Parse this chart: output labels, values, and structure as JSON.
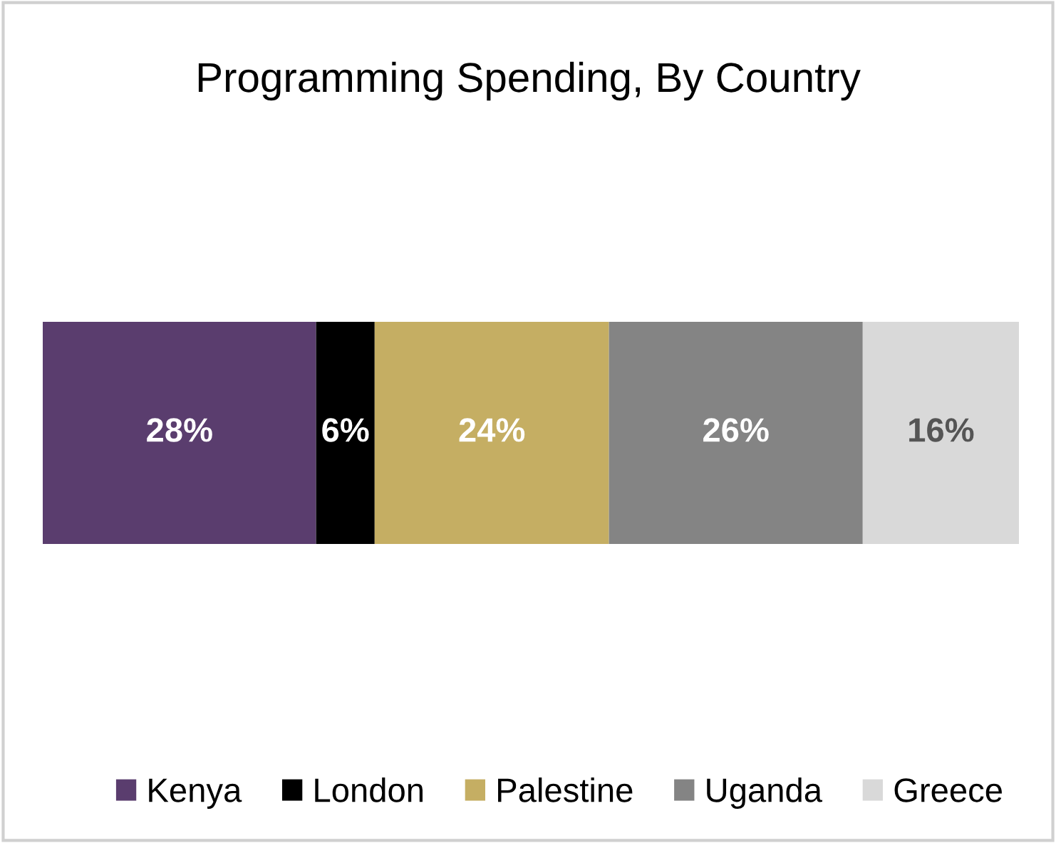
{
  "chart_data": {
    "type": "bar",
    "orientation": "horizontal",
    "stacked": true,
    "title": "Programming Spending, By Country",
    "categories": [
      null
    ],
    "xlim": [
      0,
      100
    ],
    "tick_labels": false,
    "legend": "bottom",
    "series": [
      {
        "name": "Kenya",
        "color": "#5a3d6e",
        "values": [
          28
        ],
        "value_labels": [
          "28%"
        ]
      },
      {
        "name": "London",
        "color": "#000000",
        "values": [
          6
        ],
        "value_labels": [
          "6%"
        ]
      },
      {
        "name": "Palestine",
        "color": "#c5ae63",
        "values": [
          24
        ],
        "value_labels": [
          "24%"
        ]
      },
      {
        "name": "Uganda",
        "color": "#848484",
        "values": [
          26
        ],
        "value_labels": [
          "26%"
        ]
      },
      {
        "name": "Greece",
        "color": "#d9d9d9",
        "values": [
          16
        ],
        "value_labels": [
          "16%"
        ]
      }
    ]
  }
}
